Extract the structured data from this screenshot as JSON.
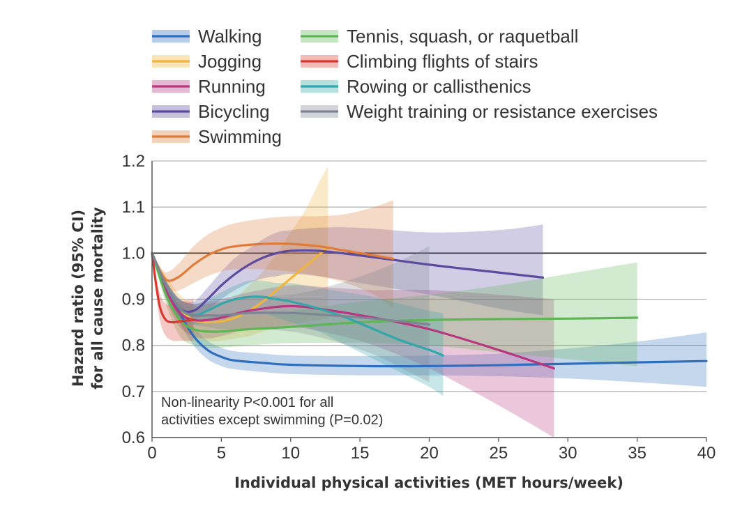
{
  "chart_data": {
    "type": "line",
    "title": "",
    "xlabel": "Individual physical activities (MET hours/week)",
    "ylabel_lines": [
      "Hazard ratio (95% CI)",
      "for all cause mortality"
    ],
    "xlim": [
      0,
      40
    ],
    "ylim": [
      0.6,
      1.2
    ],
    "xticks": [
      "0",
      "5",
      "10",
      "15",
      "20",
      "25",
      "30",
      "35",
      "40"
    ],
    "yticks": [
      "0.6",
      "0.7",
      "0.8",
      "0.9",
      "1.0",
      "1.1",
      "1.2"
    ],
    "reference_line_y": 1.0,
    "grid": true,
    "legend_position": "top",
    "annotation_lines": [
      "Non-linearity P<0.001 for all",
      "activities except swimming (P=0.02)"
    ],
    "series": [
      {
        "name": "Walking",
        "color": "#2f6ebd",
        "x": [
          0,
          1,
          2,
          3,
          4,
          5,
          6,
          8,
          10,
          15,
          20,
          25,
          30,
          35,
          40
        ],
        "y": [
          1.0,
          0.93,
          0.87,
          0.82,
          0.79,
          0.775,
          0.767,
          0.762,
          0.758,
          0.755,
          0.755,
          0.757,
          0.76,
          0.763,
          0.766
        ],
        "lower": [
          1.0,
          0.92,
          0.85,
          0.8,
          0.77,
          0.755,
          0.748,
          0.742,
          0.738,
          0.735,
          0.735,
          0.733,
          0.728,
          0.72,
          0.71
        ],
        "upper": [
          1.0,
          0.94,
          0.89,
          0.84,
          0.81,
          0.795,
          0.787,
          0.782,
          0.778,
          0.777,
          0.778,
          0.782,
          0.793,
          0.808,
          0.828
        ]
      },
      {
        "name": "Jogging",
        "color": "#f0b43c",
        "x": [
          0,
          1,
          2,
          3,
          4,
          5,
          6,
          7,
          8,
          9,
          10,
          11,
          12,
          12.7
        ],
        "y": [
          1.0,
          0.93,
          0.88,
          0.855,
          0.85,
          0.852,
          0.86,
          0.875,
          0.895,
          0.92,
          0.945,
          0.97,
          0.995,
          1.015
        ],
        "lower": [
          1.0,
          0.91,
          0.85,
          0.82,
          0.81,
          0.81,
          0.815,
          0.82,
          0.83,
          0.84,
          0.845,
          0.85,
          0.855,
          0.86
        ],
        "upper": [
          1.0,
          0.95,
          0.91,
          0.89,
          0.89,
          0.895,
          0.905,
          0.93,
          0.96,
          1.0,
          1.045,
          1.09,
          1.15,
          1.19
        ]
      },
      {
        "name": "Running",
        "color": "#b8367f",
        "x": [
          0,
          1,
          2,
          3,
          4,
          5,
          7,
          10,
          13,
          16,
          20,
          25,
          29
        ],
        "y": [
          1.0,
          0.92,
          0.87,
          0.855,
          0.855,
          0.86,
          0.875,
          0.885,
          0.875,
          0.86,
          0.835,
          0.79,
          0.75
        ],
        "lower": [
          1.0,
          0.9,
          0.84,
          0.82,
          0.815,
          0.82,
          0.835,
          0.84,
          0.825,
          0.8,
          0.75,
          0.67,
          0.6
        ],
        "upper": [
          1.0,
          0.94,
          0.9,
          0.89,
          0.895,
          0.9,
          0.915,
          0.93,
          0.925,
          0.92,
          0.92,
          0.91,
          0.9
        ]
      },
      {
        "name": "Bicycling",
        "color": "#5b4a9e",
        "x": [
          0,
          1,
          2,
          3,
          4,
          5,
          6,
          7,
          8,
          9,
          10,
          12,
          15,
          20,
          25,
          28.2
        ],
        "y": [
          1.0,
          0.93,
          0.88,
          0.875,
          0.9,
          0.93,
          0.955,
          0.975,
          0.99,
          1.0,
          1.005,
          1.005,
          0.995,
          0.975,
          0.958,
          0.947
        ],
        "lower": [
          1.0,
          0.92,
          0.86,
          0.855,
          0.875,
          0.9,
          0.92,
          0.935,
          0.945,
          0.95,
          0.955,
          0.95,
          0.935,
          0.91,
          0.88,
          0.865
        ],
        "upper": [
          1.0,
          0.94,
          0.9,
          0.895,
          0.925,
          0.96,
          0.99,
          1.01,
          1.03,
          1.045,
          1.05,
          1.055,
          1.055,
          1.045,
          1.05,
          1.062
        ]
      },
      {
        "name": "Swimming",
        "color": "#e07b39",
        "x": [
          0,
          0.7,
          1.2,
          2,
          3,
          4,
          5,
          6,
          8,
          10,
          12,
          14,
          16,
          17.4
        ],
        "y": [
          1.0,
          0.955,
          0.94,
          0.95,
          0.975,
          0.995,
          1.008,
          1.015,
          1.02,
          1.02,
          1.015,
          1.005,
          0.995,
          0.988
        ],
        "lower": [
          1.0,
          0.945,
          0.92,
          0.92,
          0.935,
          0.95,
          0.96,
          0.965,
          0.965,
          0.96,
          0.95,
          0.935,
          0.91,
          0.88
        ],
        "upper": [
          1.0,
          0.965,
          0.96,
          0.98,
          1.015,
          1.04,
          1.055,
          1.065,
          1.075,
          1.08,
          1.08,
          1.085,
          1.1,
          1.115
        ]
      },
      {
        "name": "Tennis, squash, or raquetball",
        "color": "#5db554",
        "x": [
          0,
          1,
          2,
          3,
          4,
          5,
          7,
          10,
          15,
          20,
          25,
          30,
          35
        ],
        "y": [
          1.0,
          0.91,
          0.855,
          0.835,
          0.83,
          0.83,
          0.835,
          0.84,
          0.85,
          0.855,
          0.857,
          0.858,
          0.86
        ],
        "lower": [
          1.0,
          0.89,
          0.82,
          0.8,
          0.795,
          0.795,
          0.8,
          0.805,
          0.805,
          0.8,
          0.785,
          0.77,
          0.755
        ],
        "upper": [
          1.0,
          0.93,
          0.89,
          0.87,
          0.865,
          0.865,
          0.87,
          0.875,
          0.895,
          0.91,
          0.93,
          0.955,
          0.98
        ]
      },
      {
        "name": "Climbing flights of stairs",
        "color": "#d6382f",
        "x": [
          0,
          0.3,
          0.6,
          1,
          1.5,
          2,
          3
        ],
        "y": [
          1.0,
          0.93,
          0.88,
          0.855,
          0.85,
          0.852,
          0.855
        ],
        "lower": [
          1.0,
          0.91,
          0.85,
          0.82,
          0.81,
          0.81,
          0.81
        ],
        "upper": [
          1.0,
          0.95,
          0.91,
          0.89,
          0.89,
          0.895,
          0.9
        ]
      },
      {
        "name": "Rowing or callisthenics",
        "color": "#32a6a8",
        "x": [
          0,
          1,
          2,
          3,
          4,
          5,
          6,
          7,
          8,
          9,
          10,
          12,
          14,
          16,
          18,
          20,
          21
        ],
        "y": [
          1.0,
          0.93,
          0.88,
          0.865,
          0.875,
          0.89,
          0.9,
          0.905,
          0.905,
          0.9,
          0.895,
          0.88,
          0.86,
          0.835,
          0.81,
          0.79,
          0.778
        ],
        "lower": [
          1.0,
          0.92,
          0.86,
          0.845,
          0.85,
          0.86,
          0.865,
          0.87,
          0.87,
          0.86,
          0.85,
          0.83,
          0.8,
          0.77,
          0.74,
          0.71,
          0.69
        ],
        "upper": [
          1.0,
          0.94,
          0.9,
          0.89,
          0.9,
          0.915,
          0.93,
          0.94,
          0.94,
          0.935,
          0.935,
          0.925,
          0.915,
          0.905,
          0.89,
          0.875,
          0.87
        ]
      },
      {
        "name": "Weight training or resistance exercises",
        "color": "#7d8594",
        "x": [
          0,
          1,
          2,
          3,
          4,
          5,
          7,
          10,
          13,
          16,
          18,
          20
        ],
        "y": [
          1.0,
          0.93,
          0.88,
          0.865,
          0.865,
          0.865,
          0.87,
          0.87,
          0.865,
          0.858,
          0.852,
          0.845
        ],
        "lower": [
          1.0,
          0.92,
          0.86,
          0.845,
          0.84,
          0.835,
          0.835,
          0.83,
          0.81,
          0.78,
          0.75,
          0.72
        ],
        "upper": [
          1.0,
          0.94,
          0.9,
          0.885,
          0.89,
          0.895,
          0.905,
          0.91,
          0.93,
          0.96,
          0.985,
          1.015
        ]
      }
    ]
  }
}
